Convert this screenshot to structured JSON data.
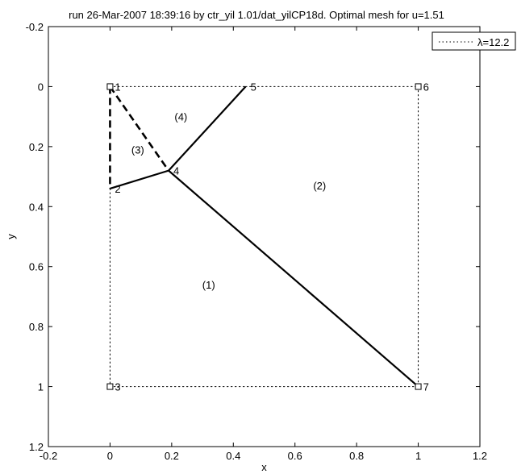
{
  "chart_data": {
    "type": "mesh-plot",
    "title": "run 26-Mar-2007 18:39:16 by ctr_yil 1.01/dat_yilCP18d. Optimal mesh for u=1.51",
    "xlabel": "x",
    "ylabel": "y",
    "xlim": [
      -0.2,
      1.2
    ],
    "ylim": [
      -0.2,
      1.2
    ],
    "y_reversed": true,
    "xticks": [
      "-0.2",
      "0",
      "0.2",
      "0.4",
      "0.6",
      "0.8",
      "1",
      "1.2"
    ],
    "yticks": [
      "-0.2",
      "0",
      "0.2",
      "0.4",
      "0.6",
      "0.8",
      "1",
      "1.2"
    ],
    "legend": {
      "position": "top-right",
      "entries": [
        "λ=12.2"
      ]
    },
    "nodes": [
      {
        "id": "1",
        "x": 0.0,
        "y": 0.0,
        "marker": "square"
      },
      {
        "id": "2",
        "x": 0.0,
        "y": 0.34,
        "marker": "none"
      },
      {
        "id": "3",
        "x": 0.0,
        "y": 1.0,
        "marker": "square"
      },
      {
        "id": "4",
        "x": 0.19,
        "y": 0.28,
        "marker": "none"
      },
      {
        "id": "5",
        "x": 0.44,
        "y": 0.0,
        "marker": "none"
      },
      {
        "id": "6",
        "x": 1.0,
        "y": 0.0,
        "marker": "square"
      },
      {
        "id": "7",
        "x": 1.0,
        "y": 1.0,
        "marker": "square"
      }
    ],
    "edges": [
      {
        "from": "1",
        "to": "5",
        "style": "dotted"
      },
      {
        "from": "5",
        "to": "6",
        "style": "dotted"
      },
      {
        "from": "6",
        "to": "7",
        "style": "dotted"
      },
      {
        "from": "3",
        "to": "7",
        "style": "dotted"
      },
      {
        "from": "2",
        "to": "3",
        "style": "dotted"
      },
      {
        "from": "1",
        "to": "2",
        "style": "dashed"
      },
      {
        "from": "1",
        "to": "4",
        "style": "dashed"
      },
      {
        "from": "2",
        "to": "4",
        "style": "solid"
      },
      {
        "from": "4",
        "to": "5",
        "style": "solid"
      },
      {
        "from": "4",
        "to": "7",
        "style": "solid"
      }
    ],
    "regions": [
      {
        "label": "(1)",
        "x": 0.32,
        "y": 0.66
      },
      {
        "label": "(2)",
        "x": 0.68,
        "y": 0.33
      },
      {
        "label": "(3)",
        "x": 0.09,
        "y": 0.21
      },
      {
        "label": "(4)",
        "x": 0.23,
        "y": 0.1
      }
    ]
  }
}
